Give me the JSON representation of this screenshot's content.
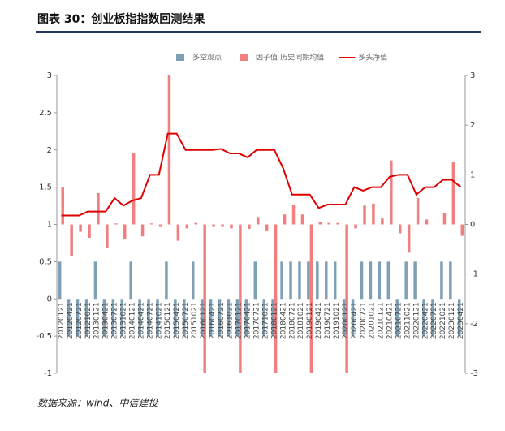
{
  "title": "图表 30：创业板指指数回测结果",
  "source": "数据来源：wind、中信建投",
  "chart_data": {
    "type": "bar",
    "categories": [
      "20120121",
      "20120421",
      "20120721",
      "20121021",
      "20130121",
      "20130421",
      "20130721",
      "20131021",
      "20140121",
      "20140421",
      "20140721",
      "20141021",
      "20150121",
      "20150421",
      "20150721",
      "20151021",
      "20160121",
      "20160421",
      "20160721",
      "20161021",
      "20170121",
      "20170421",
      "20170721",
      "20171021",
      "20180121",
      "20180421",
      "20180721",
      "20181021",
      "20190121",
      "20190421",
      "20190721",
      "20191021",
      "20200121",
      "20200421",
      "20200721",
      "20201021",
      "20210121",
      "20210421",
      "20210721",
      "20211021",
      "20220121",
      "20220421",
      "20220721",
      "20221021",
      "20230121",
      "20230421"
    ],
    "series": [
      {
        "name": "多空观点",
        "color": "#7f9fb5",
        "type": "bar",
        "values": [
          0.5,
          -0.5,
          -0.5,
          -0.5,
          0.5,
          -0.5,
          -0.5,
          -0.5,
          0.5,
          -0.5,
          -0.5,
          -0.5,
          0.5,
          -0.5,
          -0.5,
          0.5,
          -0.5,
          -0.5,
          -0.5,
          -0.5,
          -0.5,
          -0.5,
          0.5,
          -0.5,
          -0.5,
          0.5,
          0.5,
          0.5,
          0.5,
          0.5,
          0.5,
          0.5,
          -0.5,
          -0.5,
          0.5,
          0.5,
          0.5,
          0.5,
          -0.5,
          0.5,
          0.5,
          -0.5,
          -0.5,
          0.5,
          0.5,
          -0.5
        ]
      },
      {
        "name": "因子值-历史同期均值",
        "color": "#f08080",
        "type": "bar",
        "axis": "y2",
        "values": [
          0.75,
          -0.63,
          -0.15,
          -0.27,
          0.63,
          -0.48,
          0.02,
          -0.3,
          1.43,
          -0.24,
          0.02,
          -0.05,
          3,
          -0.33,
          -0.08,
          0.03,
          -3,
          -0.05,
          -0.05,
          -0.08,
          -3,
          -0.09,
          0.15,
          -0.12,
          -3,
          0.2,
          0.4,
          0.2,
          -3,
          0.05,
          0.03,
          0.03,
          -3,
          -0.08,
          0.38,
          0.42,
          0.12,
          1.29,
          -0.18,
          -0.57,
          0.53,
          0.1,
          0,
          0.23,
          1.26,
          -0.23
        ]
      },
      {
        "name": "多头净值",
        "color": "#e00000",
        "type": "line",
        "axis": "y2",
        "values": [
          0.18,
          0.18,
          0.18,
          0.26,
          0.26,
          0.26,
          0.53,
          0.38,
          0.48,
          0.53,
          1.0,
          1.0,
          1.83,
          1.83,
          1.5,
          1.5,
          1.5,
          1.5,
          1.52,
          1.43,
          1.43,
          1.35,
          1.5,
          1.5,
          1.5,
          1.13,
          0.6,
          0.6,
          0.6,
          0.33,
          0.4,
          0.4,
          0.4,
          0.75,
          0.68,
          0.75,
          0.75,
          0.96,
          1.0,
          1.0,
          0.6,
          0.75,
          0.75,
          0.9,
          0.9,
          0.75
        ]
      }
    ],
    "ylim": [
      -1,
      3
    ],
    "yticks": [
      -1,
      -0.5,
      0,
      0.5,
      1,
      1.5,
      2,
      2.5,
      3
    ],
    "y2lim": [
      -3,
      3
    ],
    "y2ticks": [
      -3,
      -2,
      -1,
      0,
      1,
      2,
      3
    ],
    "legend": "top"
  }
}
